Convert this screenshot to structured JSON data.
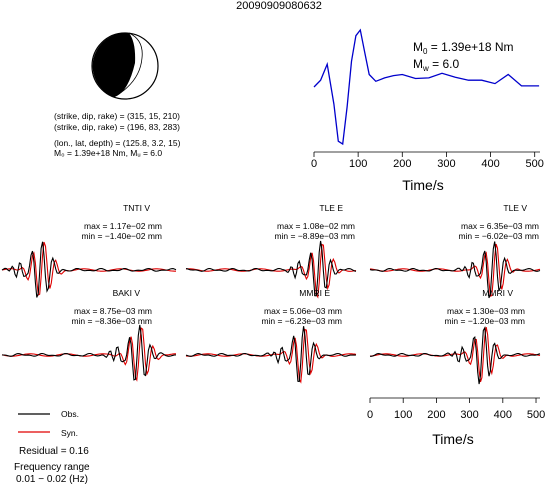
{
  "header": {
    "event_id": "20090909080632"
  },
  "mechanism": {
    "line1": "(strike, dip, rake) = (315, 15, 210)",
    "line2": "(strike, dip, rake) = (196, 83, 283)",
    "line3": "(lon., lat, depth) = (125.8, 3.2, 15)",
    "line4": "M₀ = 1.39e+18 Nm, Mᵤ = 6.0"
  },
  "stf": {
    "m0_label": "M",
    "m0_sub": "0",
    "m0_value": " = 1.39e+18 Nm",
    "mw_label": "M",
    "mw_sub": "w",
    "mw_value": " = 6.0",
    "xlabel": "Time/s",
    "xticks": [
      "0",
      "100",
      "200",
      "300",
      "400",
      "500"
    ]
  },
  "traces": [
    {
      "station": "TNTI V",
      "max": "max = 1.17e−02 mm",
      "min": "min = −1.40e−02 mm"
    },
    {
      "station": "TLE E",
      "max": "max = 1.08e−02 mm",
      "min": "min = −8.89e−03 mm"
    },
    {
      "station": "TLE V",
      "max": "max = 6.35e−03 mm",
      "min": "min = −6.02e−03 mm"
    },
    {
      "station": "BAKI V",
      "max": "max = 8.75e−03 mm",
      "min": "min = −8.36e−03 mm"
    },
    {
      "station": "MMRI E",
      "max": "max = 5.06e−03 mm",
      "min": "min = −6.23e−03 mm"
    },
    {
      "station": "MMRI V",
      "max": "max = 1.30e−03 mm",
      "min": "min = −1.20e−03 mm"
    }
  ],
  "bottom_axis": {
    "xlabel": "Time/s",
    "xticks": [
      "0",
      "100",
      "200",
      "300",
      "400",
      "500"
    ]
  },
  "legend": {
    "obs": "Obs.",
    "syn": "Syn."
  },
  "info": {
    "residual": "Residual = 0.16",
    "freq_title": "Frequency range",
    "freq_value": "0.01 − 0.02 (Hz)"
  },
  "colors": {
    "obs": "#000000",
    "syn": "#e00000",
    "stf": "#0000cc"
  },
  "chart_data": [
    {
      "type": "line",
      "title": "",
      "xlabel": "Time/s",
      "ylabel": "",
      "xlim": [
        0,
        512
      ],
      "series": [
        {
          "x": [
            0,
            15,
            30,
            45,
            55,
            65,
            75,
            85,
            95,
            105,
            115,
            125,
            140,
            160,
            180,
            200,
            230,
            260,
            290,
            320,
            350,
            380,
            410,
            440,
            470,
            500,
            510
          ],
          "values": [
            0.0,
            0.12,
            0.4,
            -0.3,
            -0.95,
            -1.0,
            -0.35,
            0.45,
            0.9,
            1.0,
            0.6,
            0.22,
            0.1,
            0.16,
            0.2,
            0.22,
            0.15,
            0.16,
            0.24,
            0.17,
            0.12,
            0.12,
            0.06,
            0.22,
            0.02,
            0.02,
            0.02
          ]
        }
      ]
    }
  ]
}
